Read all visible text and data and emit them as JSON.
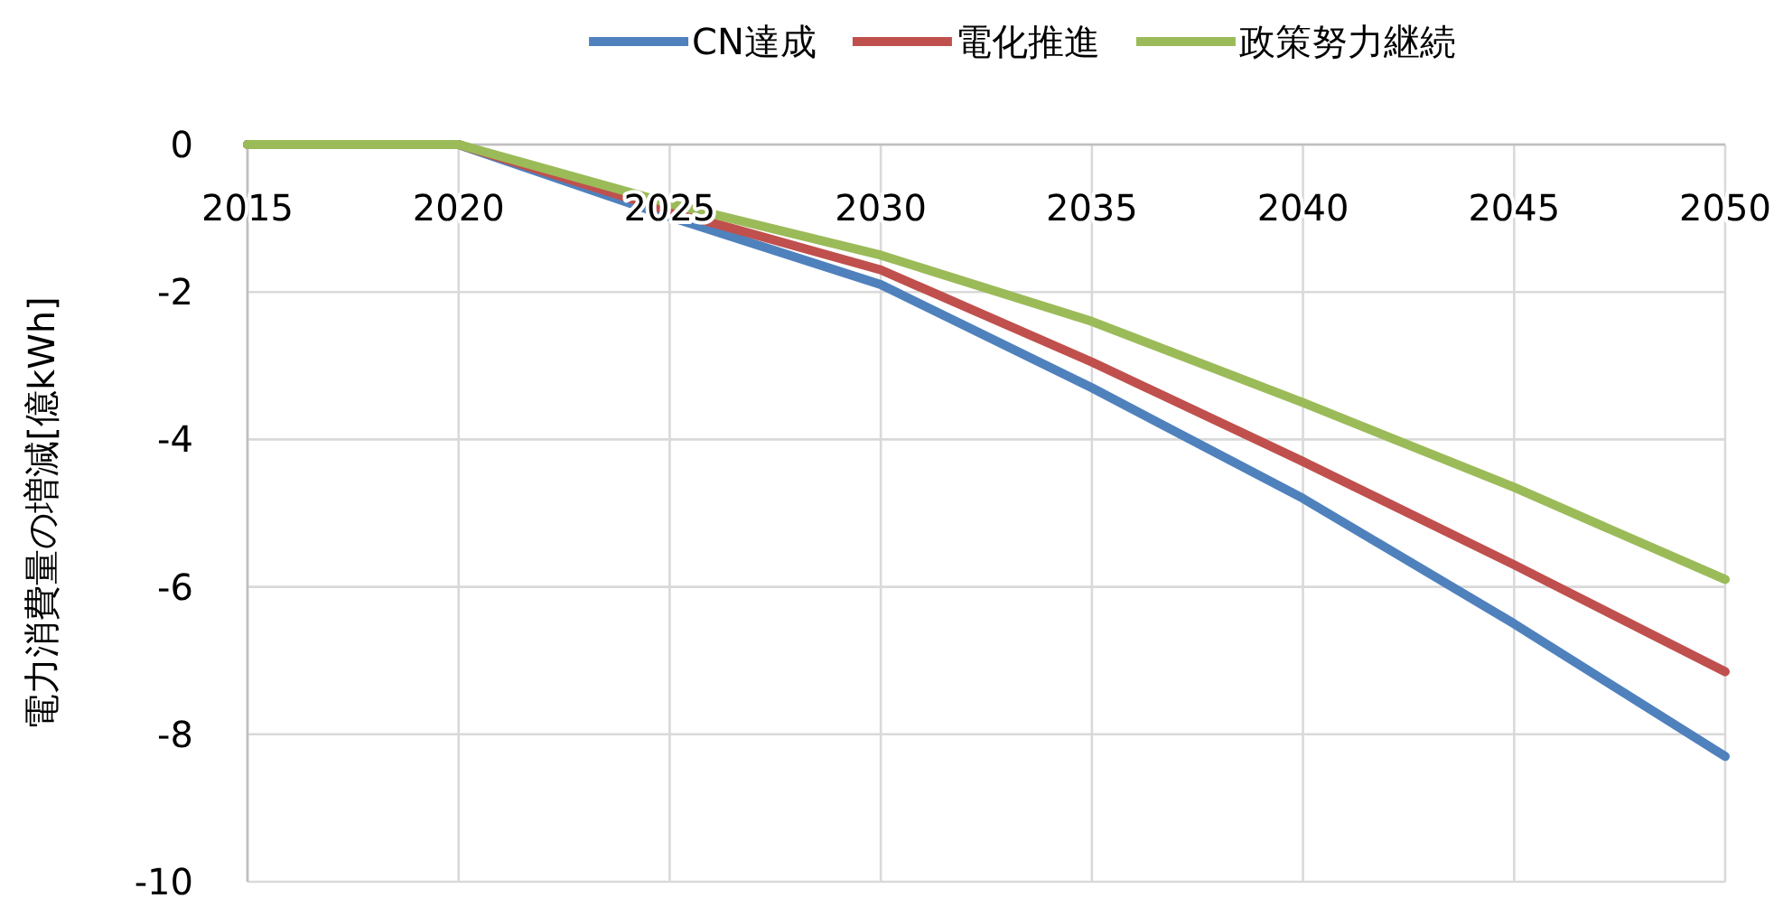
{
  "chart_data": {
    "type": "line",
    "ylabel": "電力消費量の増減[億kWh]",
    "x": [
      2015,
      2020,
      2025,
      2030,
      2035,
      2040,
      2045,
      2050
    ],
    "series": [
      {
        "name": "CN達成",
        "color": "#4f81bd",
        "values": [
          0,
          0,
          -0.98,
          -1.9,
          -3.3,
          -4.8,
          -6.5,
          -8.3
        ]
      },
      {
        "name": "電化推進",
        "color": "#c0504d",
        "values": [
          0,
          0,
          -0.9,
          -1.7,
          -2.95,
          -4.3,
          -5.7,
          -7.15
        ]
      },
      {
        "name": "政策努力継続",
        "color": "#9bbb59",
        "values": [
          0,
          0,
          -0.8,
          -1.5,
          -2.4,
          -3.5,
          -4.65,
          -5.9
        ]
      }
    ],
    "xlim": [
      2015,
      2050
    ],
    "xticks": [
      2015,
      2020,
      2025,
      2030,
      2035,
      2040,
      2045,
      2050
    ],
    "ylim": [
      -10,
      0
    ],
    "yticks": [
      -10,
      -8,
      -6,
      -4,
      -2,
      0
    ],
    "grid": true,
    "legend": "top",
    "marker": "none",
    "line_style": "solid"
  }
}
